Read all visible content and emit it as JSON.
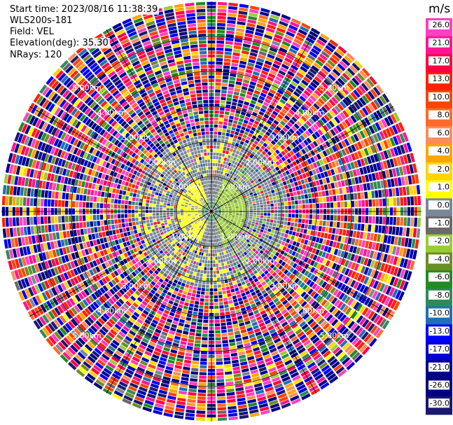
{
  "header": {
    "start_time": "Start time: 2023/08/16 11:38:39",
    "instrument": "WLS200s-181",
    "field": "Field: VEL",
    "elevation": "Elevation(deg): 35.30",
    "nrays": "NRays: 120"
  },
  "chart_data": {
    "type": "heatmap",
    "projection": "polar-ppi",
    "nrays": 120,
    "field": "VEL",
    "range_rings_km": [
      {
        "label": "1.00km",
        "value": 1.0
      },
      {
        "label": "2.00km",
        "value": 2.0
      },
      {
        "label": "3.00km",
        "value": 3.0
      },
      {
        "label": "4.00km",
        "value": 4.0
      },
      {
        "label": "5.00km",
        "value": 5.0
      }
    ],
    "max_range_km": 6.0,
    "colorbar": {
      "unit": "m/s",
      "ticks": [
        "26.0",
        "21.0",
        "17.0",
        "13.0",
        "10.0",
        "8.0",
        "6.0",
        "4.0",
        "2.0",
        "1.0",
        "0.0",
        "-1.0",
        "-2.0",
        "-4.0",
        "-6.0",
        "-8.0",
        "-10.0",
        "-13.0",
        "-17.0",
        "-21.0",
        "-26.0",
        "-30.0"
      ],
      "bins": [
        {
          "lo": 26,
          "hi": 30,
          "color": "#ff40c0"
        },
        {
          "lo": 21,
          "hi": 26,
          "color": "#ff1493"
        },
        {
          "lo": 17,
          "hi": 21,
          "color": "#ff0040"
        },
        {
          "lo": 13,
          "hi": 17,
          "color": "#ff2000"
        },
        {
          "lo": 10,
          "hi": 13,
          "color": "#ff4400"
        },
        {
          "lo": 8,
          "hi": 10,
          "color": "#ff6a2a"
        },
        {
          "lo": 6,
          "hi": 8,
          "color": "#ff8c5a"
        },
        {
          "lo": 4,
          "hi": 6,
          "color": "#ffa500"
        },
        {
          "lo": 2,
          "hi": 4,
          "color": "#ffd400"
        },
        {
          "lo": 1,
          "hi": 2,
          "color": "#ffff00"
        },
        {
          "lo": 0,
          "hi": 1,
          "color": "#778899"
        },
        {
          "lo": -1,
          "hi": 0,
          "color": "#696969"
        },
        {
          "lo": -2,
          "hi": -1,
          "color": "#9acd32"
        },
        {
          "lo": -4,
          "hi": -2,
          "color": "#6b8e23"
        },
        {
          "lo": -6,
          "hi": -4,
          "color": "#228b22"
        },
        {
          "lo": -8,
          "hi": -6,
          "color": "#2e8b57"
        },
        {
          "lo": -10,
          "hi": -8,
          "color": "#1e6fb8"
        },
        {
          "lo": -13,
          "hi": -10,
          "color": "#0000ff"
        },
        {
          "lo": -17,
          "hi": -13,
          "color": "#0000cd"
        },
        {
          "lo": -21,
          "hi": -17,
          "color": "#00008b"
        },
        {
          "lo": -26,
          "hi": -21,
          "color": "#000080"
        },
        {
          "lo": -30,
          "hi": -26,
          "color": "#191970"
        }
      ]
    },
    "structure_note_values": {
      "near_range_positive_sector_deg": [
        200,
        340
      ],
      "near_range_negative_sector_deg": [
        20,
        160
      ],
      "clean_signal_max_km": 1.0,
      "mixed_signal_max_km": 2.2
    }
  }
}
